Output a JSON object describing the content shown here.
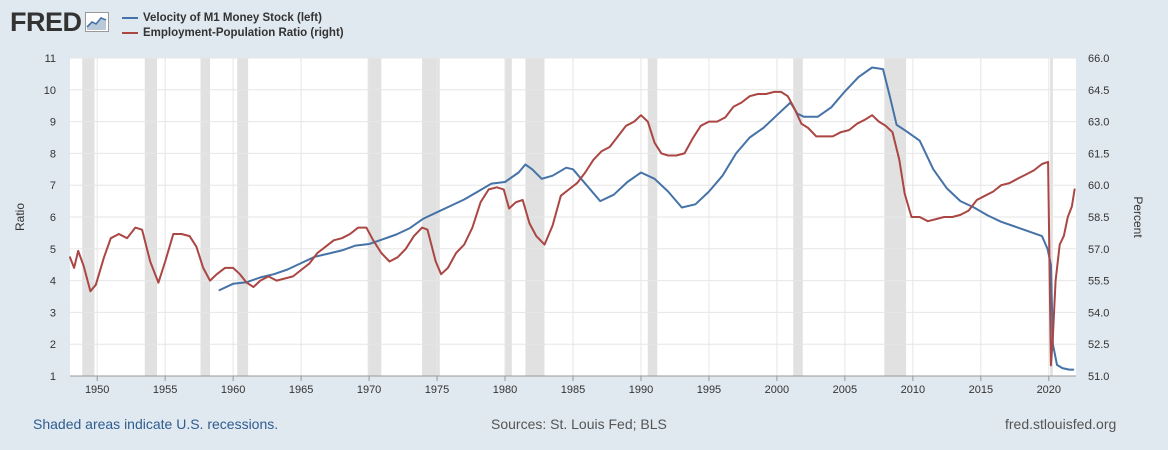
{
  "brand": {
    "name": "FRED"
  },
  "legend": [
    {
      "label": "Velocity of M1 Money Stock (left)",
      "color": "#4572a7"
    },
    {
      "label": "Employment-Population Ratio (right)",
      "color": "#aa4643"
    }
  ],
  "footer": {
    "recessions_note": "Shaded areas indicate U.S. recessions.",
    "sources": "Sources: St. Louis Fed; BLS",
    "site": "fred.stlouisfed.org"
  },
  "chart_data": {
    "type": "line",
    "ylabel_left": "Ratio",
    "ylabel_right": "Percent",
    "ylim_left": [
      1,
      11
    ],
    "ylim_right": [
      51.0,
      66.0
    ],
    "xlim": [
      1948,
      2022
    ],
    "x_ticks": [
      "1950",
      "1955",
      "1960",
      "1965",
      "1970",
      "1975",
      "1980",
      "1985",
      "1990",
      "1995",
      "2000",
      "2005",
      "2010",
      "2015",
      "2020"
    ],
    "y_left_ticks": [
      "1",
      "2",
      "3",
      "4",
      "5",
      "6",
      "7",
      "8",
      "9",
      "10",
      "11"
    ],
    "y_right_ticks": [
      "51.0",
      "52.5",
      "54.0",
      "55.5",
      "57.0",
      "58.5",
      "60.0",
      "61.5",
      "63.0",
      "64.5",
      "66.0"
    ],
    "grid": true,
    "recessions": [
      [
        1948.9,
        1949.8
      ],
      [
        1953.5,
        1954.4
      ],
      [
        1957.6,
        1958.3
      ],
      [
        1960.3,
        1961.1
      ],
      [
        1969.9,
        1970.9
      ],
      [
        1973.9,
        1975.2
      ],
      [
        1980.0,
        1980.5
      ],
      [
        1981.5,
        1982.9
      ],
      [
        1990.5,
        1991.2
      ],
      [
        2001.2,
        2001.9
      ],
      [
        2007.9,
        2009.5
      ],
      [
        2020.1,
        2020.3
      ]
    ],
    "series": [
      {
        "name": "Velocity of M1 Money Stock (left)",
        "axis": "left",
        "color": "#4572a7",
        "x": [
          1959.0,
          1960.0,
          1961.0,
          1962.0,
          1963.0,
          1964.0,
          1965.0,
          1966.0,
          1967.0,
          1968.0,
          1969.0,
          1970.0,
          1971.0,
          1972.0,
          1973.0,
          1974.0,
          1975.0,
          1976.0,
          1977.0,
          1978.0,
          1979.0,
          1980.0,
          1981.0,
          1981.5,
          1982.0,
          1982.7,
          1983.5,
          1984.5,
          1985.0,
          1986.0,
          1987.0,
          1988.0,
          1989.0,
          1990.0,
          1991.0,
          1992.0,
          1993.0,
          1994.0,
          1995.0,
          1996.0,
          1997.0,
          1998.0,
          1999.0,
          2000.0,
          2001.0,
          2001.5,
          2002.0,
          2003.0,
          2004.0,
          2005.0,
          2006.0,
          2007.0,
          2007.8,
          2008.3,
          2008.8,
          2009.5,
          2010.5,
          2011.5,
          2012.5,
          2013.5,
          2014.5,
          2015.5,
          2016.5,
          2017.5,
          2018.5,
          2019.5,
          2019.9,
          2020.15,
          2020.3,
          2020.6,
          2021.0,
          2021.5,
          2021.8
        ],
        "values": [
          3.7,
          3.9,
          3.95,
          4.1,
          4.2,
          4.35,
          4.55,
          4.75,
          4.85,
          4.95,
          5.1,
          5.15,
          5.3,
          5.45,
          5.65,
          5.95,
          6.15,
          6.35,
          6.55,
          6.8,
          7.05,
          7.1,
          7.4,
          7.65,
          7.5,
          7.2,
          7.3,
          7.55,
          7.5,
          7.0,
          6.5,
          6.7,
          7.1,
          7.4,
          7.2,
          6.8,
          6.3,
          6.4,
          6.8,
          7.3,
          8.0,
          8.5,
          8.8,
          9.2,
          9.6,
          9.25,
          9.15,
          9.15,
          9.45,
          9.95,
          10.4,
          10.7,
          10.65,
          9.8,
          8.9,
          8.7,
          8.4,
          7.5,
          6.9,
          6.5,
          6.3,
          6.05,
          5.85,
          5.7,
          5.55,
          5.4,
          5.0,
          4.5,
          2.0,
          1.35,
          1.25,
          1.2,
          1.2
        ]
      },
      {
        "name": "Employment-Population Ratio (right)",
        "axis": "right",
        "color": "#aa4643",
        "x": [
          1948.0,
          1948.3,
          1948.6,
          1949.0,
          1949.5,
          1949.9,
          1950.5,
          1951.0,
          1951.6,
          1952.2,
          1952.8,
          1953.3,
          1953.9,
          1954.5,
          1955.0,
          1955.6,
          1956.2,
          1956.8,
          1957.3,
          1957.8,
          1958.3,
          1958.8,
          1959.4,
          1960.0,
          1960.5,
          1961.0,
          1961.5,
          1962.0,
          1962.6,
          1963.2,
          1963.8,
          1964.4,
          1965.0,
          1965.6,
          1966.2,
          1966.8,
          1967.4,
          1968.0,
          1968.6,
          1969.2,
          1969.8,
          1970.3,
          1970.9,
          1971.5,
          1972.1,
          1972.7,
          1973.3,
          1973.9,
          1974.3,
          1974.9,
          1975.3,
          1975.8,
          1976.4,
          1977.0,
          1977.6,
          1978.2,
          1978.8,
          1979.4,
          1979.9,
          1980.3,
          1980.8,
          1981.3,
          1981.8,
          1982.3,
          1982.9,
          1983.5,
          1984.1,
          1984.7,
          1985.3,
          1985.9,
          1986.5,
          1987.1,
          1987.7,
          1988.3,
          1988.9,
          1989.5,
          1990.0,
          1990.5,
          1991.0,
          1991.5,
          1992.0,
          1992.6,
          1993.2,
          1993.8,
          1994.4,
          1995.0,
          1995.6,
          1996.2,
          1996.8,
          1997.4,
          1998.0,
          1998.6,
          1999.2,
          1999.8,
          2000.3,
          2000.8,
          2001.3,
          2001.8,
          2002.3,
          2002.9,
          2003.5,
          2004.1,
          2004.7,
          2005.3,
          2005.9,
          2006.5,
          2007.0,
          2007.5,
          2008.0,
          2008.5,
          2009.0,
          2009.4,
          2009.9,
          2010.5,
          2011.1,
          2011.7,
          2012.3,
          2012.9,
          2013.5,
          2014.1,
          2014.7,
          2015.3,
          2015.9,
          2016.5,
          2017.1,
          2017.7,
          2018.3,
          2018.9,
          2019.5,
          2019.95,
          2020.15,
          2020.3,
          2020.5,
          2020.8,
          2021.1,
          2021.4,
          2021.7,
          2021.9
        ],
        "values": [
          56.6,
          56.1,
          56.9,
          56.2,
          55.0,
          55.3,
          56.6,
          57.5,
          57.7,
          57.5,
          58.0,
          57.9,
          56.4,
          55.4,
          56.4,
          57.7,
          57.7,
          57.6,
          57.1,
          56.1,
          55.5,
          55.8,
          56.1,
          56.1,
          55.8,
          55.4,
          55.2,
          55.5,
          55.7,
          55.5,
          55.6,
          55.7,
          56.0,
          56.3,
          56.8,
          57.1,
          57.4,
          57.5,
          57.7,
          58.0,
          58.0,
          57.4,
          56.8,
          56.4,
          56.6,
          57.0,
          57.6,
          58.0,
          57.9,
          56.4,
          55.8,
          56.1,
          56.8,
          57.2,
          58.0,
          59.2,
          59.8,
          59.9,
          59.8,
          58.9,
          59.2,
          59.3,
          58.2,
          57.6,
          57.2,
          58.1,
          59.5,
          59.8,
          60.1,
          60.6,
          61.2,
          61.6,
          61.8,
          62.3,
          62.8,
          63.0,
          63.3,
          63.0,
          62.0,
          61.5,
          61.4,
          61.4,
          61.5,
          62.2,
          62.8,
          63.0,
          63.0,
          63.2,
          63.7,
          63.9,
          64.2,
          64.3,
          64.3,
          64.4,
          64.4,
          64.2,
          63.6,
          62.9,
          62.7,
          62.3,
          62.3,
          62.3,
          62.5,
          62.6,
          62.9,
          63.1,
          63.3,
          63.0,
          62.8,
          62.5,
          61.2,
          59.6,
          58.5,
          58.5,
          58.3,
          58.4,
          58.5,
          58.5,
          58.6,
          58.8,
          59.3,
          59.5,
          59.7,
          60.0,
          60.1,
          60.3,
          60.5,
          60.7,
          61.0,
          61.1,
          51.5,
          52.9,
          55.5,
          57.2,
          57.6,
          58.5,
          59.0,
          59.8
        ]
      }
    ]
  }
}
